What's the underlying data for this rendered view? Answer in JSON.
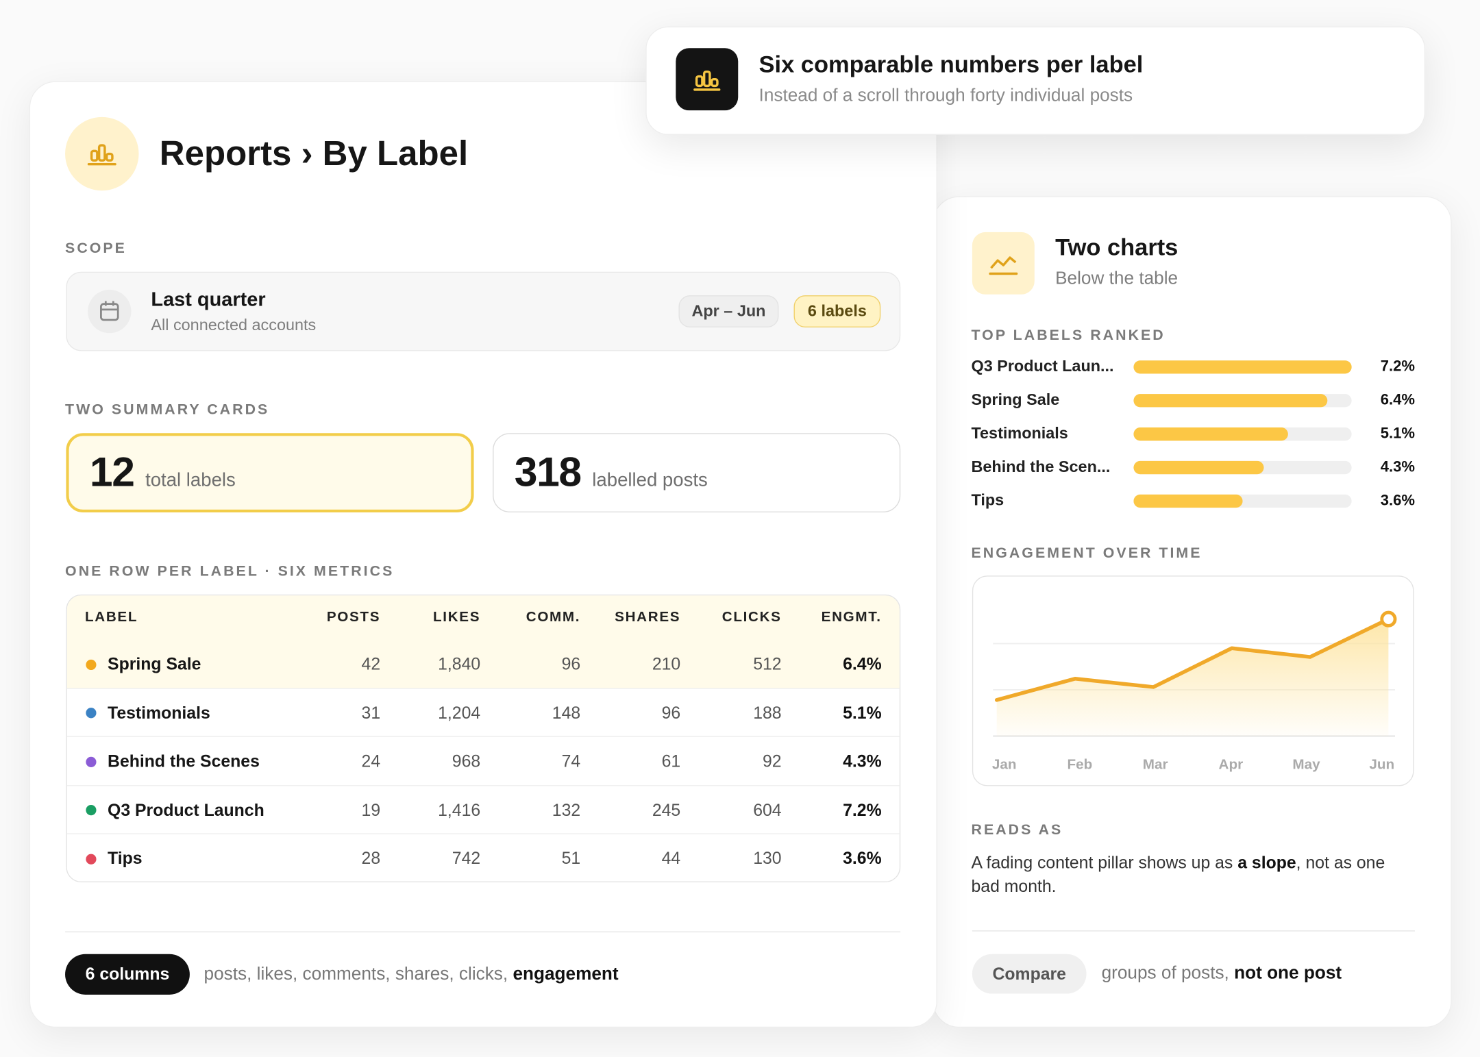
{
  "callout": {
    "title": "Six comparable numbers per label",
    "subtitle": "Instead of a scroll through forty individual posts"
  },
  "main": {
    "title": "Reports › By Label",
    "scope": {
      "heading": "SCOPE",
      "title": "Last quarter",
      "subtitle": "All connected accounts",
      "range": "Apr – Jun",
      "count": "6 labels"
    },
    "summary": {
      "heading": "TWO SUMMARY CARDS",
      "cards": [
        {
          "value": 12,
          "label": "total labels",
          "highlighted": true
        },
        {
          "value": 318,
          "label": "labelled posts",
          "highlighted": false
        }
      ]
    },
    "table": {
      "heading": "ONE ROW PER LABEL · SIX METRICS",
      "columns": [
        "LABEL",
        "POSTS",
        "LIKES",
        "COMM.",
        "SHARES",
        "CLICKS",
        "ENGMT."
      ],
      "highlighted_row": 0,
      "rows": [
        {
          "label": "Spring Sale",
          "color": "#f2a81d",
          "cells": [
            "42",
            "1,840",
            "96",
            "210",
            "512",
            "6.4%"
          ]
        },
        {
          "label": "Testimonials",
          "color": "#3b82c4",
          "cells": [
            "31",
            "1,204",
            "148",
            "96",
            "188",
            "5.1%"
          ]
        },
        {
          "label": "Behind the Scenes",
          "color": "#8b5cd6",
          "cells": [
            "24",
            "968",
            "74",
            "61",
            "92",
            "4.3%"
          ]
        },
        {
          "label": "Q3 Product Launch",
          "color": "#1a9e63",
          "cells": [
            "19",
            "1,416",
            "132",
            "245",
            "604",
            "7.2%"
          ]
        },
        {
          "label": "Tips",
          "color": "#e2495b",
          "cells": [
            "28",
            "742",
            "51",
            "44",
            "130",
            "3.6%"
          ]
        }
      ]
    },
    "footer": {
      "badge": "6 columns",
      "text": "posts, likes, comments, shares, clicks, ",
      "bold": "engagement"
    }
  },
  "side": {
    "title": "Two charts",
    "subtitle": "Below the table",
    "reads_as": {
      "heading": "READS AS",
      "text_before": "A fading content pillar shows up as ",
      "bold": "a slope",
      "text_after": ", not as one bad month."
    },
    "footer": {
      "badge": "Compare",
      "text": "groups of posts, ",
      "bold": "not one post"
    }
  },
  "chart_data": [
    {
      "type": "bar",
      "orientation": "horizontal",
      "title": "TOP LABELS RANKED",
      "color": "#fcc745",
      "track_color": "#efefef",
      "categories": [
        "Q3 Product Laun...",
        "Spring Sale",
        "Testimonials",
        "Behind the Scen...",
        "Tips"
      ],
      "values": [
        7.2,
        6.4,
        5.1,
        4.3,
        3.6
      ],
      "value_labels": [
        "7.2%",
        "6.4%",
        "5.1%",
        "4.3%",
        "3.6%"
      ],
      "xlim": [
        0,
        7.2
      ]
    },
    {
      "type": "line",
      "title": "ENGAGEMENT OVER TIME",
      "color": "#f0a92a",
      "categories": [
        "Jan",
        "Feb",
        "Mar",
        "Apr",
        "May",
        "Jun"
      ],
      "values": [
        0.78,
        1.24,
        1.06,
        1.9,
        1.71,
        2.53
      ],
      "ylim": [
        0,
        3
      ],
      "yticks": [
        0,
        1,
        2
      ],
      "grid": true
    }
  ]
}
